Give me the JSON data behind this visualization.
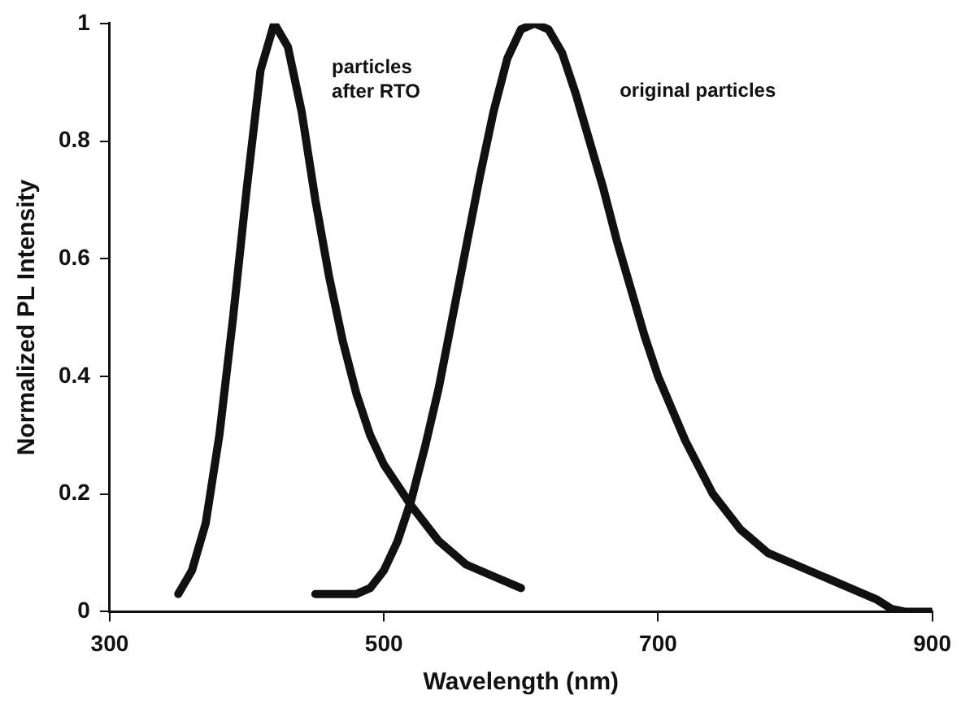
{
  "chart_data": {
    "type": "line",
    "xlabel": "Wavelength (nm)",
    "ylabel": "Normalized PL Intensity",
    "xlim": [
      300,
      900
    ],
    "xticks": [
      300,
      500,
      700,
      900
    ],
    "ylim": [
      0,
      1
    ],
    "yticks": [
      0,
      0.2,
      0.4,
      0.6,
      0.8,
      1
    ],
    "grid": false,
    "legend": false,
    "marker": "none",
    "line_style": "solid",
    "series": [
      {
        "color": "#111111",
        "x": [
          350,
          360,
          370,
          380,
          390,
          400,
          410,
          420,
          430,
          440,
          450,
          460,
          470,
          480,
          490,
          500,
          520,
          540,
          560,
          580,
          600
        ],
        "values": [
          0.03,
          0.07,
          0.15,
          0.3,
          0.5,
          0.72,
          0.92,
          1.0,
          0.96,
          0.85,
          0.7,
          0.57,
          0.46,
          0.37,
          0.3,
          0.25,
          0.18,
          0.12,
          0.08,
          0.06,
          0.04
        ]
      },
      {
        "color": "#111111",
        "x": [
          450,
          470,
          480,
          490,
          500,
          510,
          520,
          530,
          540,
          550,
          560,
          570,
          580,
          590,
          600,
          610,
          620,
          630,
          640,
          650,
          660,
          670,
          680,
          690,
          700,
          720,
          740,
          760,
          780,
          800,
          820,
          840,
          860,
          870,
          880,
          900
        ],
        "values": [
          0.03,
          0.03,
          0.03,
          0.04,
          0.07,
          0.12,
          0.19,
          0.28,
          0.38,
          0.5,
          0.62,
          0.74,
          0.85,
          0.94,
          0.99,
          1.0,
          0.99,
          0.95,
          0.88,
          0.8,
          0.72,
          0.63,
          0.55,
          0.47,
          0.4,
          0.29,
          0.2,
          0.14,
          0.1,
          0.08,
          0.06,
          0.04,
          0.02,
          0.005,
          0,
          0
        ]
      }
    ],
    "annotations": [
      "particles after RTO",
      "original particles"
    ]
  }
}
